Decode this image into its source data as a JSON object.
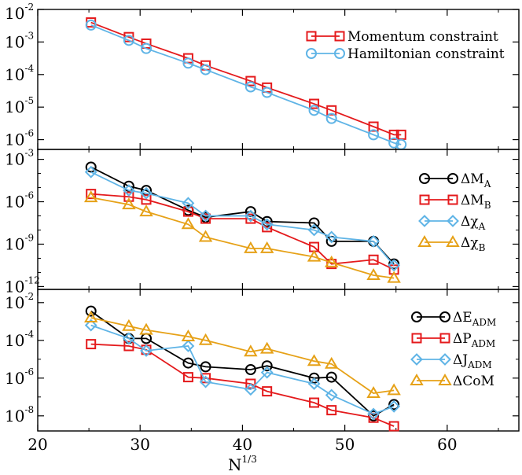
{
  "chart_data": {
    "type": "line",
    "xlabel": {
      "base": "N",
      "sup": "1/3"
    },
    "x_ticks": [
      20,
      30,
      40,
      50,
      60
    ],
    "xlim": [
      20,
      67
    ],
    "colors": {
      "black": "#000000",
      "red": "#e41a1c",
      "blue": "#5fb4e6",
      "orange": "#e6a117"
    },
    "panels": [
      {
        "name": "constraints",
        "ylog": true,
        "ylim_exp": [
          -6.3,
          -2
        ],
        "y_ticks": [
          {
            "base": "10",
            "exp": "-2",
            "v": -2
          },
          {
            "base": "10",
            "exp": "-3",
            "v": -3
          },
          {
            "base": "10",
            "exp": "-4",
            "v": -4
          },
          {
            "base": "10",
            "exp": "-5",
            "v": -5
          },
          {
            "base": "10",
            "exp": "-6",
            "v": -6
          }
        ],
        "legend_position": "top-right",
        "series": [
          {
            "name": "Momentum constraint",
            "label_main": "Momentum constraint",
            "label_sub": "",
            "marker": "square",
            "color": "#e41a1c",
            "x": [
              25.2,
              28.9,
              30.6,
              34.7,
              36.4,
              40.8,
              42.4,
              47.0,
              48.7,
              52.8,
              54.8,
              55.5
            ],
            "log10y": [
              -2.4,
              -2.85,
              -3.05,
              -3.5,
              -3.72,
              -4.2,
              -4.4,
              -4.9,
              -5.1,
              -5.6,
              -5.85,
              -5.85
            ]
          },
          {
            "name": "Hamiltonian constraint",
            "label_main": "Hamiltonian constraint",
            "label_sub": "",
            "marker": "circle",
            "color": "#5fb4e6",
            "x": [
              25.2,
              28.9,
              30.6,
              34.7,
              36.4,
              40.8,
              42.4,
              47.0,
              48.7,
              52.8,
              54.8,
              55.5
            ],
            "log10y": [
              -2.48,
              -2.95,
              -3.2,
              -3.65,
              -3.85,
              -4.38,
              -4.55,
              -5.1,
              -5.35,
              -5.85,
              -6.1,
              -6.15
            ]
          }
        ]
      },
      {
        "name": "parameters",
        "ylog": true,
        "ylim_exp": [
          -12.2,
          -2.3
        ],
        "y_ticks": [
          {
            "base": "10",
            "exp": "-3",
            "v": -3
          },
          {
            "base": "10",
            "exp": "-6",
            "v": -6
          },
          {
            "base": "10",
            "exp": "-9",
            "v": -9
          },
          {
            "base": "10",
            "exp": "-12",
            "v": -12
          }
        ],
        "legend_position": "right",
        "series": [
          {
            "name": "ΔM_A",
            "label_main": "ΔM",
            "label_sub": "A",
            "marker": "circle",
            "color": "#000000",
            "x": [
              25.2,
              28.9,
              30.6,
              34.7,
              36.4,
              40.8,
              42.4,
              47.0,
              48.7,
              52.8,
              54.8
            ],
            "log10y": [
              -3.55,
              -4.9,
              -5.2,
              -6.6,
              -7.1,
              -6.7,
              -7.4,
              -7.5,
              -8.8,
              -8.8,
              -10.4
            ]
          },
          {
            "name": "ΔM_B",
            "label_main": "ΔM",
            "label_sub": "B",
            "marker": "square",
            "color": "#e41a1c",
            "x": [
              25.2,
              28.9,
              30.6,
              34.7,
              36.4,
              40.8,
              42.4,
              47.0,
              48.7,
              52.8,
              54.8
            ],
            "log10y": [
              -5.45,
              -5.65,
              -5.85,
              -6.7,
              -7.2,
              -7.2,
              -7.8,
              -9.2,
              -10.4,
              -10.1,
              -10.8
            ]
          },
          {
            "name": "Δχ_A",
            "label_main": "Δχ",
            "label_sub": "A",
            "marker": "diamond",
            "color": "#5fb4e6",
            "x": [
              25.2,
              28.9,
              30.6,
              34.7,
              36.4,
              40.8,
              42.4,
              47.0,
              48.7,
              52.8,
              54.8
            ],
            "log10y": [
              -3.9,
              -5.2,
              -5.4,
              -6.1,
              -7.0,
              -7.0,
              -7.6,
              -8.0,
              -8.5,
              -8.8,
              -10.5
            ]
          },
          {
            "name": "Δχ_B",
            "label_main": "Δχ",
            "label_sub": "B",
            "marker": "triangle",
            "color": "#e6a117",
            "x": [
              25.2,
              28.9,
              30.6,
              34.7,
              36.4,
              40.8,
              42.4,
              47.0,
              48.7,
              52.8,
              54.8
            ],
            "log10y": [
              -5.7,
              -6.2,
              -6.7,
              -7.6,
              -8.5,
              -9.3,
              -9.3,
              -9.9,
              -10.3,
              -11.2,
              -11.4
            ]
          }
        ]
      },
      {
        "name": "adm",
        "ylog": true,
        "ylim_exp": [
          -8.8,
          -1.3
        ],
        "y_ticks": [
          {
            "base": "10",
            "exp": "-2",
            "v": -2
          },
          {
            "base": "10",
            "exp": "-4",
            "v": -4
          },
          {
            "base": "10",
            "exp": "-6",
            "v": -6
          },
          {
            "base": "10",
            "exp": "-8",
            "v": -8
          }
        ],
        "legend_position": "right",
        "series": [
          {
            "name": "ΔE_ADM",
            "label_main": "ΔE",
            "label_sub": "ADM",
            "marker": "circle",
            "color": "#000000",
            "x": [
              25.2,
              28.9,
              30.6,
              34.7,
              36.4,
              40.8,
              42.4,
              47.0,
              48.7,
              52.8,
              54.8
            ],
            "log10y": [
              -2.45,
              -3.9,
              -3.9,
              -5.2,
              -5.4,
              -5.55,
              -5.35,
              -6.0,
              -5.95,
              -8.0,
              -7.4
            ]
          },
          {
            "name": "ΔP_ADM",
            "label_main": "ΔP",
            "label_sub": "ADM",
            "marker": "square",
            "color": "#e41a1c",
            "x": [
              25.2,
              28.9,
              30.6,
              34.7,
              36.4,
              40.8,
              42.4,
              47.0,
              48.7,
              52.8,
              54.8
            ],
            "log10y": [
              -4.2,
              -4.3,
              -4.5,
              -5.95,
              -6.0,
              -6.3,
              -6.7,
              -7.3,
              -7.7,
              -8.1,
              -8.55
            ]
          },
          {
            "name": "ΔJ_ADM",
            "label_main": "ΔJ",
            "label_sub": "ADM",
            "marker": "diamond",
            "color": "#5fb4e6",
            "x": [
              25.2,
              28.9,
              30.6,
              34.7,
              36.4,
              40.8,
              42.4,
              47.0,
              48.7,
              52.8,
              54.8
            ],
            "log10y": [
              -3.2,
              -3.9,
              -4.55,
              -4.3,
              -6.2,
              -6.6,
              -5.7,
              -6.3,
              -6.9,
              -7.9,
              -7.5
            ]
          },
          {
            "name": "ΔCoM",
            "label_main": "ΔCoM",
            "label_sub": "",
            "marker": "triangle",
            "color": "#e6a117",
            "x": [
              25.2,
              28.9,
              30.6,
              34.7,
              36.4,
              40.8,
              42.4,
              47.0,
              48.7,
              52.8,
              54.8
            ],
            "log10y": [
              -2.8,
              -3.25,
              -3.45,
              -3.8,
              -4.0,
              -4.6,
              -4.45,
              -5.1,
              -5.25,
              -6.8,
              -6.65
            ]
          }
        ]
      }
    ]
  }
}
